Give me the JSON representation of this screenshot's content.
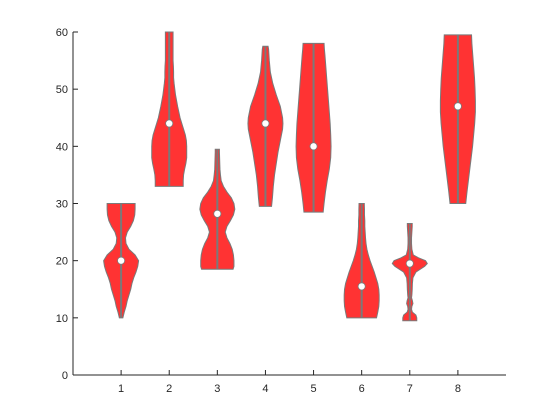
{
  "chart_data": {
    "type": "violin",
    "title": "",
    "xlabel": "",
    "ylabel": "",
    "categories": [
      "1",
      "2",
      "3",
      "4",
      "5",
      "6",
      "7",
      "8"
    ],
    "yticks": [
      "0",
      "10",
      "20",
      "30",
      "40",
      "50",
      "60"
    ],
    "ylim": [
      0,
      60
    ],
    "xlim": [
      0,
      9
    ],
    "grid": false,
    "legend": "none",
    "fill_color": "#ff3333",
    "edge_color": "#7a7a7a",
    "series": [
      {
        "category": "1",
        "min": 10,
        "max": 30,
        "median": 20,
        "profile": [
          [
            10,
            0.1
          ],
          [
            11,
            0.18
          ],
          [
            12,
            0.28
          ],
          [
            13,
            0.35
          ],
          [
            14,
            0.45
          ],
          [
            15,
            0.55
          ],
          [
            16,
            0.62
          ],
          [
            17,
            0.72
          ],
          [
            18,
            0.85
          ],
          [
            19,
            0.95
          ],
          [
            20,
            1.0
          ],
          [
            21,
            0.8
          ],
          [
            22,
            0.45
          ],
          [
            23,
            0.28
          ],
          [
            24,
            0.25
          ],
          [
            25,
            0.35
          ],
          [
            26,
            0.55
          ],
          [
            27,
            0.7
          ],
          [
            28,
            0.78
          ],
          [
            29,
            0.8
          ],
          [
            30,
            0.8
          ]
        ]
      },
      {
        "category": "2",
        "min": 33,
        "max": 60,
        "median": 44,
        "profile": [
          [
            33,
            0.8
          ],
          [
            34,
            0.8
          ],
          [
            35,
            0.82
          ],
          [
            36,
            0.88
          ],
          [
            37,
            0.95
          ],
          [
            38,
            1.0
          ],
          [
            39,
            1.0
          ],
          [
            40,
            1.0
          ],
          [
            41,
            0.98
          ],
          [
            42,
            0.92
          ],
          [
            43,
            0.82
          ],
          [
            44,
            0.72
          ],
          [
            45,
            0.62
          ],
          [
            46,
            0.55
          ],
          [
            47,
            0.48
          ],
          [
            48,
            0.42
          ],
          [
            49,
            0.36
          ],
          [
            50,
            0.32
          ],
          [
            51,
            0.28
          ],
          [
            52,
            0.25
          ],
          [
            53,
            0.25
          ],
          [
            54,
            0.24
          ],
          [
            55,
            0.22
          ],
          [
            56,
            0.22
          ],
          [
            57,
            0.22
          ],
          [
            58,
            0.22
          ],
          [
            59,
            0.22
          ],
          [
            60,
            0.22
          ]
        ]
      },
      {
        "category": "3",
        "min": 18.5,
        "max": 39.5,
        "median": 28.2,
        "profile": [
          [
            18.5,
            0.9
          ],
          [
            19,
            0.95
          ],
          [
            20,
            0.95
          ],
          [
            21,
            0.92
          ],
          [
            22,
            0.85
          ],
          [
            23,
            0.72
          ],
          [
            24,
            0.55
          ],
          [
            25,
            0.45
          ],
          [
            26,
            0.55
          ],
          [
            27,
            0.75
          ],
          [
            28,
            0.92
          ],
          [
            29,
            1.0
          ],
          [
            30,
            0.95
          ],
          [
            31,
            0.8
          ],
          [
            32,
            0.55
          ],
          [
            33,
            0.35
          ],
          [
            34,
            0.22
          ],
          [
            35,
            0.18
          ],
          [
            36,
            0.15
          ],
          [
            37,
            0.14
          ],
          [
            38,
            0.13
          ],
          [
            39,
            0.12
          ],
          [
            39.5,
            0.12
          ]
        ]
      },
      {
        "category": "4",
        "min": 29.5,
        "max": 57.5,
        "median": 44,
        "profile": [
          [
            29.5,
            0.35
          ],
          [
            31,
            0.4
          ],
          [
            33,
            0.45
          ],
          [
            35,
            0.52
          ],
          [
            37,
            0.62
          ],
          [
            39,
            0.72
          ],
          [
            41,
            0.85
          ],
          [
            43,
            0.98
          ],
          [
            44,
            1.0
          ],
          [
            45,
            0.98
          ],
          [
            47,
            0.85
          ],
          [
            49,
            0.62
          ],
          [
            51,
            0.42
          ],
          [
            53,
            0.28
          ],
          [
            55,
            0.22
          ],
          [
            57,
            0.18
          ],
          [
            57.5,
            0.15
          ]
        ]
      },
      {
        "category": "5",
        "min": 28.5,
        "max": 58,
        "median": 40,
        "profile": [
          [
            28.5,
            0.55
          ],
          [
            30,
            0.6
          ],
          [
            32,
            0.68
          ],
          [
            34,
            0.78
          ],
          [
            36,
            0.9
          ],
          [
            38,
            0.98
          ],
          [
            40,
            1.0
          ],
          [
            42,
            0.98
          ],
          [
            44,
            0.95
          ],
          [
            46,
            0.9
          ],
          [
            48,
            0.85
          ],
          [
            50,
            0.8
          ],
          [
            52,
            0.75
          ],
          [
            54,
            0.7
          ],
          [
            56,
            0.65
          ],
          [
            57,
            0.62
          ],
          [
            58,
            0.6
          ]
        ]
      },
      {
        "category": "6",
        "min": 10,
        "max": 30,
        "median": 15.5,
        "profile": [
          [
            10,
            0.85
          ],
          [
            11,
            0.92
          ],
          [
            12,
            0.98
          ],
          [
            13,
            1.0
          ],
          [
            14,
            1.0
          ],
          [
            15,
            0.98
          ],
          [
            16,
            0.92
          ],
          [
            17,
            0.82
          ],
          [
            18,
            0.72
          ],
          [
            19,
            0.6
          ],
          [
            20,
            0.48
          ],
          [
            21,
            0.38
          ],
          [
            22,
            0.3
          ],
          [
            23,
            0.25
          ],
          [
            24,
            0.22
          ],
          [
            25,
            0.2
          ],
          [
            26,
            0.18
          ],
          [
            27,
            0.18
          ],
          [
            28,
            0.16
          ],
          [
            29,
            0.16
          ],
          [
            30,
            0.15
          ]
        ]
      },
      {
        "category": "7",
        "min": 9.5,
        "max": 26.5,
        "median": 19.5,
        "profile": [
          [
            9.5,
            0.4
          ],
          [
            10,
            0.4
          ],
          [
            10.5,
            0.35
          ],
          [
            11,
            0.15
          ],
          [
            11.5,
            0.1
          ],
          [
            12,
            0.12
          ],
          [
            12.5,
            0.18
          ],
          [
            13,
            0.15
          ],
          [
            13.5,
            0.1
          ],
          [
            14,
            0.12
          ],
          [
            15,
            0.14
          ],
          [
            16,
            0.15
          ],
          [
            17,
            0.18
          ],
          [
            18,
            0.35
          ],
          [
            19,
            0.85
          ],
          [
            19.5,
            1.0
          ],
          [
            20,
            0.9
          ],
          [
            20.5,
            0.5
          ],
          [
            21,
            0.2
          ],
          [
            22,
            0.12
          ],
          [
            23,
            0.1
          ],
          [
            24,
            0.1
          ],
          [
            25,
            0.12
          ],
          [
            26,
            0.14
          ],
          [
            26.5,
            0.14
          ]
        ]
      },
      {
        "category": "8",
        "min": 30,
        "max": 59.5,
        "median": 47,
        "profile": [
          [
            30,
            0.45
          ],
          [
            32,
            0.52
          ],
          [
            34,
            0.6
          ],
          [
            36,
            0.68
          ],
          [
            38,
            0.76
          ],
          [
            40,
            0.84
          ],
          [
            42,
            0.9
          ],
          [
            44,
            0.96
          ],
          [
            46,
            1.0
          ],
          [
            48,
            1.0
          ],
          [
            50,
            0.98
          ],
          [
            52,
            0.95
          ],
          [
            54,
            0.9
          ],
          [
            56,
            0.85
          ],
          [
            58,
            0.8
          ],
          [
            59.5,
            0.78
          ]
        ]
      }
    ]
  }
}
